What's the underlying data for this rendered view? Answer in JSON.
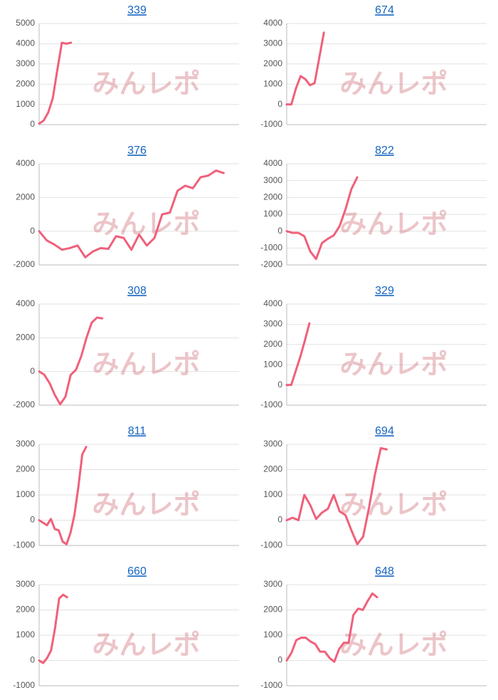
{
  "watermark": "みんレポ",
  "chart_data": [
    {
      "type": "line",
      "title": "339",
      "color": "#f0607a",
      "ylim": [
        0,
        5000
      ],
      "yticks": [
        0,
        1000,
        2000,
        3000,
        4000,
        5000
      ],
      "xlim": [
        0,
        44
      ],
      "grid": true,
      "x": [
        0,
        1,
        2,
        3,
        4,
        5,
        6,
        7
      ],
      "values": [
        50,
        200,
        600,
        1300,
        2700,
        4050,
        4000,
        4050
      ]
    },
    {
      "type": "line",
      "title": "674",
      "color": "#f0607a",
      "ylim": [
        -1000,
        4000
      ],
      "yticks": [
        -1000,
        0,
        1000,
        2000,
        3000,
        4000
      ],
      "xlim": [
        0,
        43
      ],
      "grid": true,
      "x": [
        0,
        1,
        2,
        3,
        4,
        5,
        6,
        7,
        8
      ],
      "values": [
        0,
        0,
        800,
        1400,
        1250,
        950,
        1050,
        2300,
        3550
      ]
    },
    {
      "type": "line",
      "title": "376",
      "color": "#f0607a",
      "ylim": [
        -2000,
        4000
      ],
      "yticks": [
        -2000,
        0,
        2000,
        4000
      ],
      "xlim": [
        0,
        26
      ],
      "grid": true,
      "x": [
        0,
        1,
        2,
        3,
        4,
        5,
        6,
        7,
        8,
        9,
        10,
        11,
        12,
        13,
        14,
        15,
        16,
        17,
        18,
        19,
        20,
        21,
        22,
        23,
        24
      ],
      "values": [
        0,
        -550,
        -800,
        -1100,
        -1000,
        -850,
        -1550,
        -1200,
        -1000,
        -1050,
        -300,
        -400,
        -1100,
        -200,
        -850,
        -400,
        1000,
        1100,
        2400,
        2700,
        2550,
        3200,
        3300,
        3600,
        3450
      ]
    },
    {
      "type": "line",
      "title": "822",
      "color": "#f0607a",
      "ylim": [
        -2000,
        4000
      ],
      "yticks": [
        -2000,
        -1000,
        0,
        1000,
        2000,
        3000,
        4000
      ],
      "xlim": [
        0,
        34
      ],
      "grid": true,
      "x": [
        0,
        1,
        2,
        3,
        4,
        5,
        6,
        7,
        8,
        9,
        10,
        11,
        12
      ],
      "values": [
        0,
        -100,
        -100,
        -300,
        -1200,
        -1650,
        -700,
        -450,
        -250,
        300,
        1300,
        2500,
        3200
      ]
    },
    {
      "type": "line",
      "title": "308",
      "color": "#f0607a",
      "ylim": [
        -2000,
        4000
      ],
      "yticks": [
        -2000,
        0,
        2000,
        4000
      ],
      "xlim": [
        0,
        38
      ],
      "grid": true,
      "x": [
        0,
        1,
        2,
        3,
        4,
        5,
        6,
        7,
        8,
        9,
        10,
        11,
        12
      ],
      "values": [
        0,
        -200,
        -700,
        -1400,
        -1950,
        -1500,
        -200,
        100,
        900,
        2000,
        2900,
        3200,
        3150
      ]
    },
    {
      "type": "line",
      "title": "329",
      "color": "#f0607a",
      "ylim": [
        -1000,
        4000
      ],
      "yticks": [
        -1000,
        0,
        1000,
        2000,
        3000,
        4000
      ],
      "xlim": [
        0,
        44
      ],
      "grid": true,
      "x": [
        0,
        1,
        2,
        3,
        4,
        5
      ],
      "values": [
        0,
        0,
        700,
        1400,
        2200,
        3050
      ]
    },
    {
      "type": "line",
      "title": "811",
      "color": "#f0607a",
      "ylim": [
        -1000,
        3000
      ],
      "yticks": [
        -1000,
        0,
        1000,
        2000,
        3000
      ],
      "xlim": [
        0,
        51
      ],
      "grid": true,
      "x": [
        0,
        1,
        2,
        3,
        4,
        5,
        6,
        7,
        8,
        9,
        10,
        11,
        12
      ],
      "values": [
        0,
        -100,
        -200,
        50,
        -350,
        -400,
        -850,
        -950,
        -500,
        200,
        1300,
        2600,
        2900
      ]
    },
    {
      "type": "line",
      "title": "694",
      "color": "#f0607a",
      "ylim": [
        -1000,
        3000
      ],
      "yticks": [
        -1000,
        0,
        1000,
        2000,
        3000
      ],
      "xlim": [
        0,
        34
      ],
      "grid": true,
      "x": [
        0,
        1,
        2,
        3,
        4,
        5,
        6,
        7,
        8,
        9,
        10,
        11,
        12,
        13,
        14,
        15,
        16,
        17
      ],
      "values": [
        0,
        100,
        0,
        1000,
        600,
        50,
        300,
        450,
        1000,
        350,
        200,
        -400,
        -950,
        -650,
        500,
        1800,
        2850,
        2800
      ]
    },
    {
      "type": "line",
      "title": "660",
      "color": "#f0607a",
      "ylim": [
        -1000,
        3000
      ],
      "yticks": [
        -1000,
        0,
        1000,
        2000,
        3000
      ],
      "xlim": [
        0,
        50
      ],
      "grid": true,
      "x": [
        0,
        1,
        2,
        3,
        4,
        5,
        6,
        7
      ],
      "values": [
        0,
        -100,
        100,
        400,
        1300,
        2450,
        2600,
        2500
      ]
    },
    {
      "type": "line",
      "title": "648",
      "color": "#f0607a",
      "ylim": [
        -1000,
        3000
      ],
      "yticks": [
        -1000,
        0,
        1000,
        2000,
        3000
      ],
      "xlim": [
        0,
        42
      ],
      "grid": true,
      "x": [
        0,
        1,
        2,
        3,
        4,
        5,
        6,
        7,
        8,
        9,
        10,
        11,
        12,
        13,
        14,
        15,
        16,
        17,
        18,
        19
      ],
      "values": [
        0,
        300,
        800,
        900,
        900,
        750,
        650,
        350,
        350,
        100,
        -50,
        450,
        700,
        700,
        1800,
        2050,
        2000,
        2350,
        2650,
        2500
      ]
    }
  ]
}
